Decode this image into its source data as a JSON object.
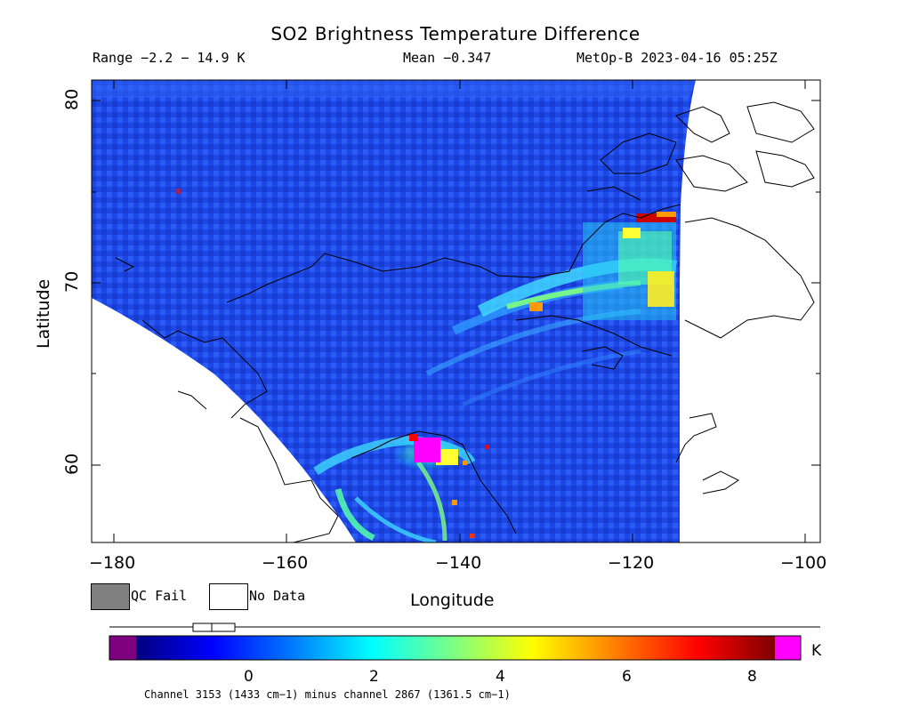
{
  "header": {
    "title": "SO2 Brightness Temperature Difference",
    "range": "Range −2.2 − 14.9 K",
    "mean": "Mean −0.347",
    "satellite_time": "MetOp-B 2023-04-16 05:25Z"
  },
  "axes": {
    "xlabel": "Longitude",
    "ylabel": "Latitude",
    "xticks": [
      "−180",
      "−160",
      "−140",
      "−120",
      "−100"
    ],
    "xtick_values": [
      -180,
      -160,
      -140,
      -120,
      -100
    ],
    "yticks": [
      "80",
      "70",
      "60"
    ],
    "ytick_values": [
      80,
      70,
      60
    ],
    "xlim": [
      -182,
      -98
    ],
    "ylim": [
      55.7,
      81.1
    ]
  },
  "legend": {
    "qc_fail": "QC Fail",
    "no_data": "No Data",
    "qc_fail_color": "#808080",
    "no_data_color": "#ffffff"
  },
  "colorbar": {
    "unit": "K",
    "ticks": [
      "0",
      "2",
      "4",
      "6",
      "8"
    ],
    "tick_values": [
      0,
      2,
      4,
      6,
      8
    ],
    "range": [
      -2.2,
      8.8
    ],
    "under_color": "#7f007f",
    "over_color": "#ff00ff",
    "colors": [
      "#00007f",
      "#0000ff",
      "#007fff",
      "#00ffff",
      "#7fff7f",
      "#ffff00",
      "#ff7f00",
      "#ff0000",
      "#7f0000"
    ]
  },
  "footnote": "Channel 3153 (1433 cm−1) minus channel 2867 (1361.5 cm−1)",
  "map": {
    "background_color": "#1f4ff0",
    "plume_colors": [
      "#3fa0ff",
      "#55ffaa",
      "#ffff33",
      "#ff9900",
      "#cc0000",
      "#ff00ff"
    ]
  }
}
